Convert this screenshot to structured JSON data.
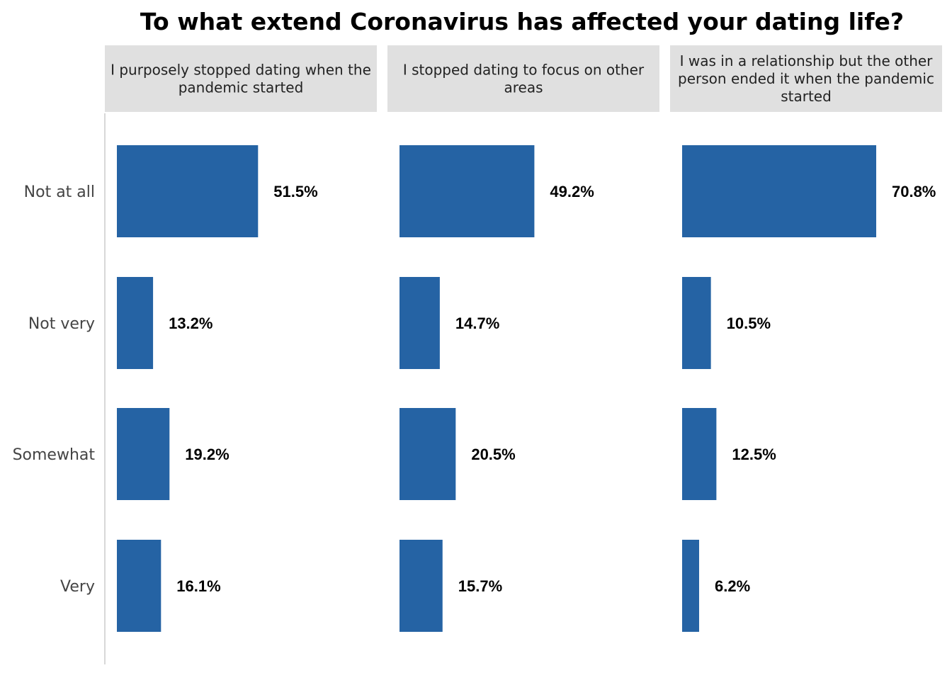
{
  "chart_data": {
    "type": "bar",
    "orientation": "horizontal",
    "title": "To what extend Coronavirus has affected your dating life?",
    "categories": [
      "Not at all",
      "Not very",
      "Somewhat",
      "Very"
    ],
    "panels": [
      {
        "header_lines": [
          "I purposely stopped dating when the",
          "pandemic started"
        ],
        "values": [
          51.5,
          13.2,
          19.2,
          16.1
        ],
        "labels": [
          "51.5%",
          "13.2%",
          "19.2%",
          "16.1%"
        ]
      },
      {
        "header_lines": [
          "I stopped dating to focus on other",
          "areas"
        ],
        "values": [
          49.2,
          14.7,
          20.5,
          15.7
        ],
        "labels": [
          "49.2%",
          "14.7%",
          "20.5%",
          "15.7%"
        ]
      },
      {
        "header_lines": [
          "I was in a relationship but the other",
          "person ended it when the pandemic",
          "started"
        ],
        "values": [
          70.8,
          10.5,
          12.5,
          6.2
        ],
        "labels": [
          "70.8%",
          "10.5%",
          "12.5%",
          "6.2%"
        ]
      }
    ],
    "xlim": [
      0,
      100
    ],
    "grid": false,
    "legend": "none",
    "bar_color": "#2563a4",
    "header_bg_color": "#e0e0e0",
    "axis_line_color": "#cccccc"
  }
}
